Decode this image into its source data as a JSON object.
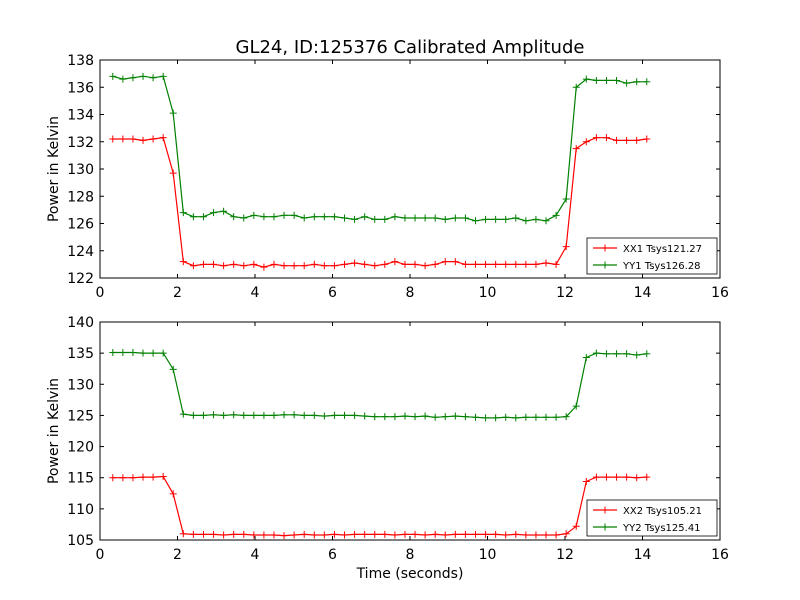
{
  "figure": {
    "title": "GL24, ID:125376 Calibrated Amplitude",
    "xlabel": "Time (seconds)"
  },
  "chart_data": [
    {
      "type": "line",
      "title": "GL24, ID:125376 Calibrated Amplitude",
      "xlabel": "",
      "ylabel": "Power in Kelvin",
      "xlim": [
        0,
        16
      ],
      "ylim": [
        122,
        138
      ],
      "xticks": [
        0,
        2,
        4,
        6,
        8,
        10,
        12,
        14,
        16
      ],
      "yticks": [
        122,
        124,
        126,
        128,
        130,
        132,
        134,
        136,
        138
      ],
      "grid": false,
      "legend": "lower-right",
      "x": [
        0.33,
        0.59,
        0.85,
        1.11,
        1.37,
        1.63,
        1.89,
        2.15,
        2.41,
        2.67,
        2.93,
        3.19,
        3.45,
        3.71,
        3.97,
        4.23,
        4.49,
        4.75,
        5.01,
        5.27,
        5.53,
        5.79,
        6.05,
        6.31,
        6.57,
        6.83,
        7.09,
        7.35,
        7.61,
        7.87,
        8.13,
        8.39,
        8.65,
        8.91,
        9.17,
        9.43,
        9.69,
        9.95,
        10.21,
        10.47,
        10.73,
        10.99,
        11.25,
        11.51,
        11.77,
        12.03,
        12.29,
        12.55,
        12.81,
        13.07,
        13.33,
        13.59,
        13.85,
        14.11
      ],
      "series": [
        {
          "name": "XX1 Tsys121.27",
          "color": "#ff0000",
          "values": [
            132.2,
            132.2,
            132.2,
            132.1,
            132.2,
            132.3,
            129.7,
            123.2,
            122.9,
            123.0,
            123.0,
            122.9,
            123.0,
            122.9,
            123.0,
            122.8,
            123.0,
            122.9,
            122.9,
            122.9,
            123.0,
            122.9,
            122.9,
            123.0,
            123.1,
            123.0,
            122.9,
            123.0,
            123.2,
            123.0,
            123.0,
            122.9,
            123.0,
            123.2,
            123.2,
            123.0,
            123.0,
            123.0,
            123.0,
            123.0,
            123.0,
            123.0,
            123.0,
            123.1,
            123.0,
            124.3,
            131.5,
            132.0,
            132.3,
            132.3,
            132.1,
            132.1,
            132.1,
            132.2
          ]
        },
        {
          "name": "YY1 Tsys126.28",
          "color": "#008000",
          "values": [
            136.8,
            136.6,
            136.7,
            136.8,
            136.7,
            136.8,
            134.1,
            126.8,
            126.5,
            126.5,
            126.8,
            126.9,
            126.5,
            126.4,
            126.6,
            126.5,
            126.5,
            126.6,
            126.6,
            126.4,
            126.5,
            126.5,
            126.5,
            126.4,
            126.3,
            126.5,
            126.3,
            126.3,
            126.5,
            126.4,
            126.4,
            126.4,
            126.4,
            126.3,
            126.4,
            126.4,
            126.2,
            126.3,
            126.3,
            126.3,
            126.4,
            126.2,
            126.3,
            126.2,
            126.6,
            127.8,
            136.0,
            136.6,
            136.5,
            136.5,
            136.5,
            136.3,
            136.4,
            136.4
          ]
        }
      ]
    },
    {
      "type": "line",
      "title": "",
      "xlabel": "Time (seconds)",
      "ylabel": "Power in Kelvin",
      "xlim": [
        0,
        16
      ],
      "ylim": [
        105,
        140
      ],
      "xticks": [
        0,
        2,
        4,
        6,
        8,
        10,
        12,
        14,
        16
      ],
      "yticks": [
        105,
        110,
        115,
        120,
        125,
        130,
        135,
        140
      ],
      "grid": false,
      "legend": "lower-right",
      "x": [
        0.33,
        0.59,
        0.85,
        1.11,
        1.37,
        1.63,
        1.89,
        2.15,
        2.41,
        2.67,
        2.93,
        3.19,
        3.45,
        3.71,
        3.97,
        4.23,
        4.49,
        4.75,
        5.01,
        5.27,
        5.53,
        5.79,
        6.05,
        6.31,
        6.57,
        6.83,
        7.09,
        7.35,
        7.61,
        7.87,
        8.13,
        8.39,
        8.65,
        8.91,
        9.17,
        9.43,
        9.69,
        9.95,
        10.21,
        10.47,
        10.73,
        10.99,
        11.25,
        11.51,
        11.77,
        12.03,
        12.29,
        12.55,
        12.81,
        13.07,
        13.33,
        13.59,
        13.85,
        14.11
      ],
      "series": [
        {
          "name": "XX2 Tsys105.21",
          "color": "#ff0000",
          "values": [
            115.0,
            115.0,
            115.0,
            115.1,
            115.1,
            115.2,
            112.4,
            106.0,
            105.9,
            105.9,
            105.9,
            105.8,
            105.9,
            105.9,
            105.8,
            105.8,
            105.8,
            105.7,
            105.8,
            105.9,
            105.8,
            105.8,
            105.9,
            105.8,
            105.9,
            105.9,
            105.9,
            105.9,
            105.8,
            105.9,
            105.9,
            105.8,
            105.9,
            105.8,
            105.9,
            105.9,
            105.9,
            105.9,
            105.9,
            105.8,
            105.9,
            105.8,
            105.8,
            105.8,
            105.8,
            106.0,
            107.2,
            114.4,
            115.1,
            115.1,
            115.1,
            115.1,
            115.0,
            115.1
          ]
        },
        {
          "name": "YY2 Tsys125.41",
          "color": "#008000",
          "values": [
            135.1,
            135.1,
            135.1,
            135.0,
            135.0,
            135.0,
            132.4,
            125.2,
            125.0,
            125.0,
            125.1,
            125.0,
            125.1,
            125.0,
            125.0,
            125.0,
            125.0,
            125.1,
            125.1,
            125.0,
            125.0,
            124.9,
            125.0,
            125.0,
            125.0,
            124.9,
            124.8,
            124.8,
            124.8,
            124.9,
            124.8,
            124.9,
            124.7,
            124.8,
            124.9,
            124.8,
            124.7,
            124.6,
            124.6,
            124.7,
            124.6,
            124.7,
            124.7,
            124.7,
            124.7,
            124.8,
            126.5,
            134.3,
            135.0,
            134.9,
            134.9,
            134.9,
            134.7,
            134.9
          ]
        }
      ]
    }
  ]
}
